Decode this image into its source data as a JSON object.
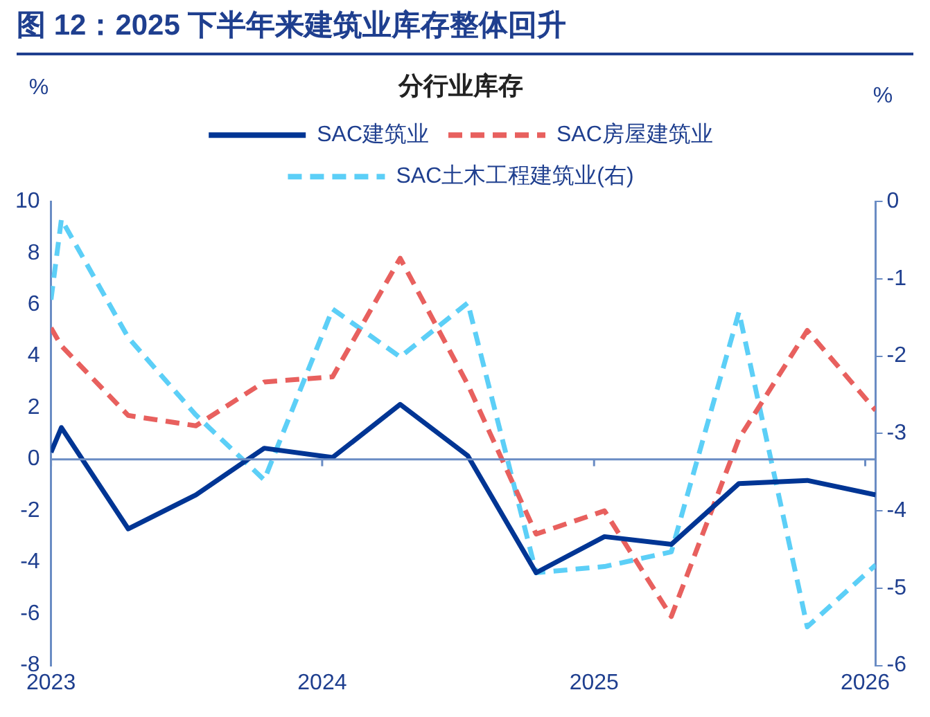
{
  "chart_data": {
    "type": "line",
    "title": "图 12：2025 下半年来建筑业库存整体回升",
    "subtitle": "分行业库存",
    "ylabel": "%",
    "y2label": "%",
    "x": [
      "2023-01-01",
      "2023-01-15",
      "2023-04-15",
      "2023-07-15",
      "2023-10-15",
      "2024-01-15",
      "2024-04-15",
      "2024-07-15",
      "2024-10-15",
      "2025-01-15",
      "2025-04-15",
      "2025-07-15",
      "2025-10-15",
      "2026-01-15"
    ],
    "series": [
      {
        "name": "SAC建筑业",
        "color": "#003594",
        "line_style": "solid",
        "values": [
          0.27,
          1.23,
          -2.7,
          -1.38,
          0.43,
          0.07,
          2.13,
          0.14,
          -4.4,
          -3.0,
          -3.3,
          -0.94,
          -0.82,
          -1.38
        ]
      },
      {
        "name": "SAC房屋建筑业",
        "color": "#e8605e",
        "line_style": "dashed",
        "values": [
          5.1,
          4.4,
          1.7,
          1.3,
          3.0,
          3.2,
          7.8,
          2.9,
          -2.9,
          -2.0,
          -6.1,
          0.8,
          5.0,
          1.9
        ]
      },
      {
        "name": "SAC土木工程建筑业(右)",
        "color": "#5ccff7",
        "line_style": "dashed",
        "axis": "y2",
        "values": [
          -1.27,
          -0.23,
          -1.76,
          -2.76,
          -3.6,
          -1.39,
          -2.01,
          -1.31,
          -4.8,
          -4.72,
          -4.53,
          -1.43,
          -5.5,
          -4.7
        ]
      }
    ],
    "xlim": [
      "2023-01-01",
      "2026-01-15"
    ],
    "xticks": [
      "2023",
      "2024",
      "2025",
      "2026"
    ],
    "ylim": [
      -8,
      10
    ],
    "yticks": [
      -8,
      -6,
      -4,
      -2,
      0,
      2,
      4,
      6,
      8,
      10
    ],
    "y2lim": [
      -6,
      0
    ],
    "y2ticks": [
      -6,
      -5,
      -4,
      -3,
      -2,
      -1,
      0
    ],
    "ref_lines": [
      {
        "axis": "y",
        "value": 0,
        "color": "#6a8cc4"
      }
    ],
    "grid": false,
    "legend": "top",
    "marker": "none"
  }
}
